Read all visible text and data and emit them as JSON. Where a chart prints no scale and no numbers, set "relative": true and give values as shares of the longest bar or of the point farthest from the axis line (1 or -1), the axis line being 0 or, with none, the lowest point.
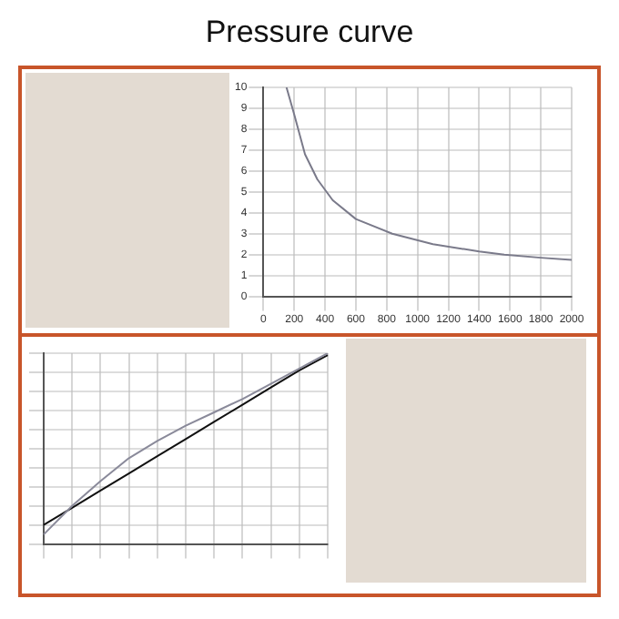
{
  "chart_data": [
    {
      "type": "line",
      "title": "Pressure curve",
      "x": [
        150,
        200,
        270,
        350,
        450,
        600,
        836,
        1100,
        1400,
        1563,
        1800,
        2000
      ],
      "series": [
        {
          "color": "#7a7a8a",
          "values": [
            10,
            8.7,
            6.8,
            5.6,
            4.6,
            3.7,
            3,
            2.5,
            2.15,
            2,
            1.85,
            1.75
          ]
        }
      ],
      "xlim": [
        0,
        2000
      ],
      "xticks": [
        0,
        200,
        400,
        600,
        800,
        1000,
        1200,
        1400,
        1600,
        1800,
        2000
      ],
      "ylim": [
        0,
        10
      ],
      "yticks": [
        0,
        1,
        2,
        3,
        4,
        5,
        6,
        7,
        8,
        9,
        10
      ],
      "grid": true,
      "marker": "none",
      "line_style": "solid"
    },
    {
      "type": "line",
      "relative": true,
      "categories": [
        null,
        null,
        null,
        null,
        null,
        null,
        null,
        null,
        null,
        null,
        null
      ],
      "series": [
        {
          "color": "#8a8a9a",
          "values": [
            0.05,
            0.2,
            0.33,
            0.45,
            0.54,
            0.62,
            0.69,
            0.76,
            0.84,
            0.92,
            1
          ]
        },
        {
          "color": "#111111",
          "values": [
            0.1,
            0.19,
            0.28,
            0.37,
            0.46,
            0.55,
            0.64,
            0.73,
            0.82,
            0.91,
            0.99
          ]
        }
      ],
      "grid": true,
      "marker": "none",
      "line_style": "solid"
    }
  ]
}
